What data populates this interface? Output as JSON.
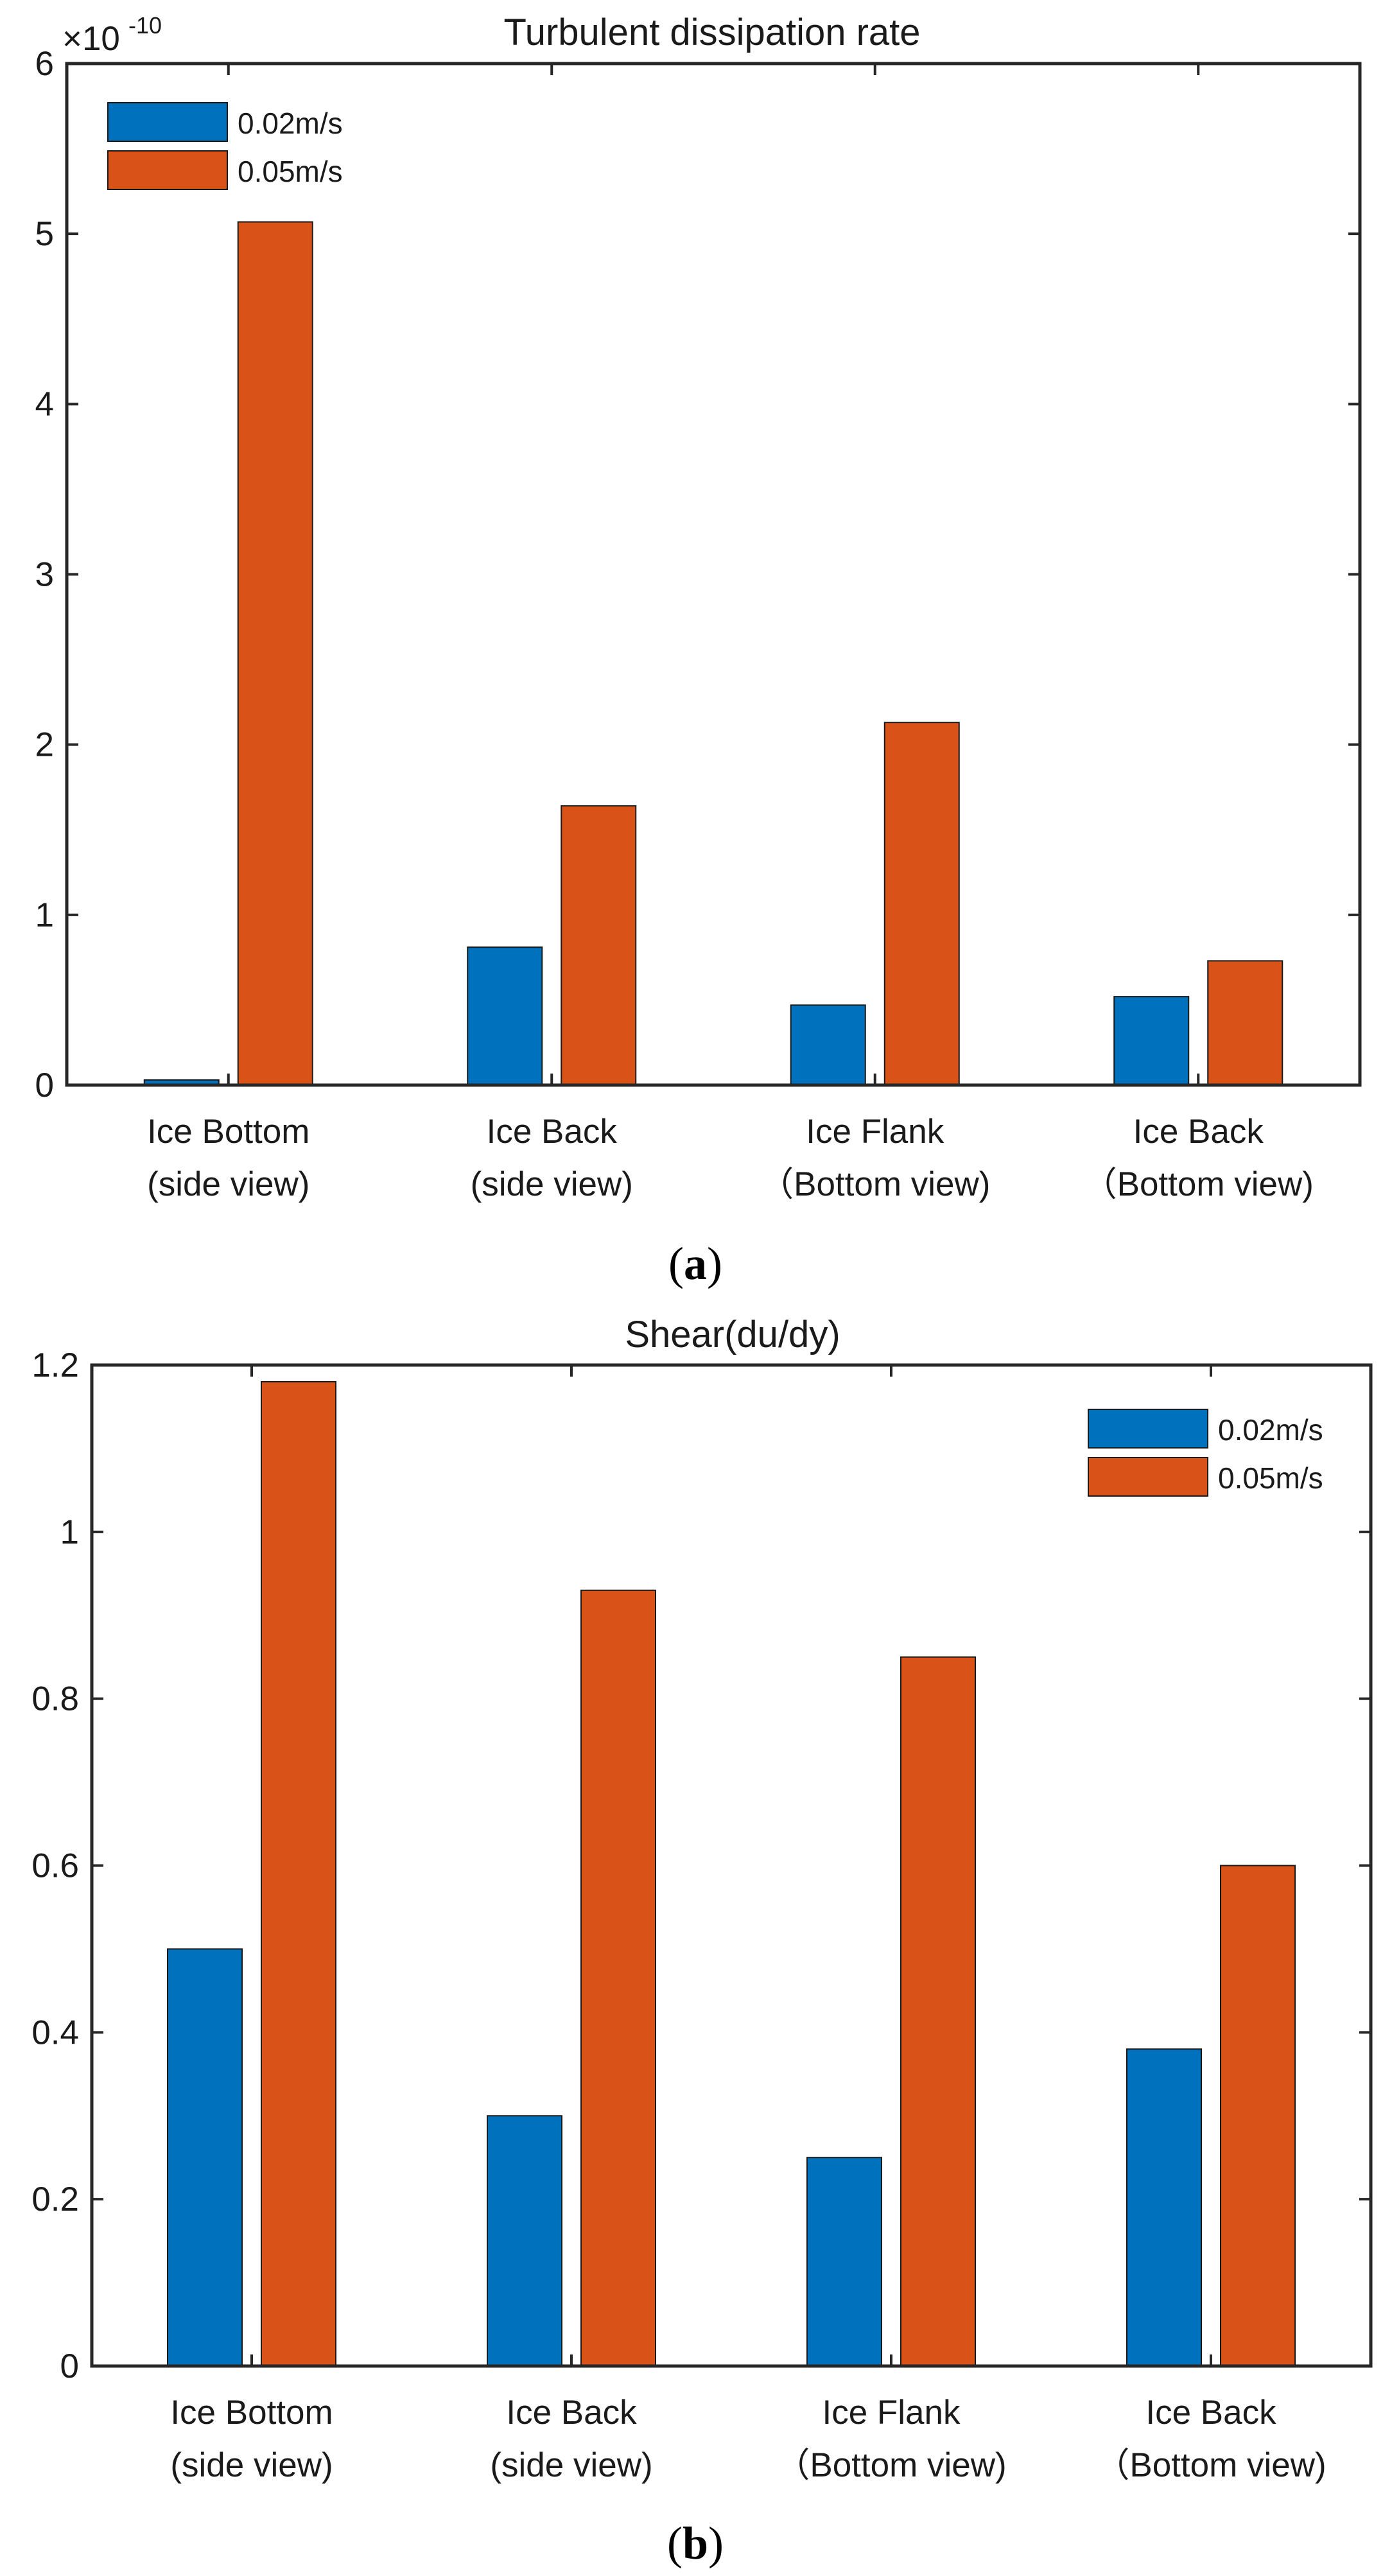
{
  "colors": {
    "series_1": "#0072BD",
    "series_2": "#D95319",
    "axis": "#262626"
  },
  "chart_data": [
    {
      "panel_label": "a",
      "type": "bar",
      "title": "Turbulent dissipation rate",
      "xlabel": "",
      "ylabel": "",
      "exponent_base": "×10",
      "exponent_power": "-10",
      "categories": [
        [
          "Ice Bottom",
          "(side view)"
        ],
        [
          "Ice Back",
          "(side view)"
        ],
        [
          "Ice Flank",
          "（Bottom view)"
        ],
        [
          "Ice Back",
          "（Bottom view)"
        ]
      ],
      "ylim": [
        0,
        6
      ],
      "yticks": [
        0,
        1,
        2,
        3,
        4,
        5,
        6
      ],
      "ytick_labels": [
        "0",
        "1",
        "2",
        "3",
        "4",
        "5",
        "6"
      ],
      "legend_position": "top-left",
      "series": [
        {
          "name": "0.02m/s",
          "color": "#0072BD",
          "values": [
            0.03,
            0.81,
            0.47,
            0.52
          ]
        },
        {
          "name": "0.05m/s",
          "color": "#D95319",
          "values": [
            5.07,
            1.64,
            2.13,
            0.73
          ]
        }
      ]
    },
    {
      "panel_label": "b",
      "type": "bar",
      "title": "Shear(du/dy)",
      "xlabel": "",
      "ylabel": "",
      "categories": [
        [
          "Ice Bottom",
          "(side view)"
        ],
        [
          "Ice Back",
          "(side view)"
        ],
        [
          "Ice Flank",
          "（Bottom view)"
        ],
        [
          "Ice Back",
          "（Bottom view)"
        ]
      ],
      "ylim": [
        0,
        1.2
      ],
      "yticks": [
        0,
        0.2,
        0.4,
        0.6,
        0.8,
        1,
        1.2
      ],
      "ytick_labels": [
        "0",
        "0.2",
        "0.4",
        "0.6",
        "0.8",
        "1",
        "1.2"
      ],
      "legend_position": "top-right",
      "series": [
        {
          "name": "0.02m/s",
          "color": "#0072BD",
          "values": [
            0.5,
            0.3,
            0.25,
            0.38
          ]
        },
        {
          "name": "0.05m/s",
          "color": "#D95319",
          "values": [
            1.18,
            0.93,
            0.85,
            0.6
          ]
        }
      ]
    }
  ]
}
